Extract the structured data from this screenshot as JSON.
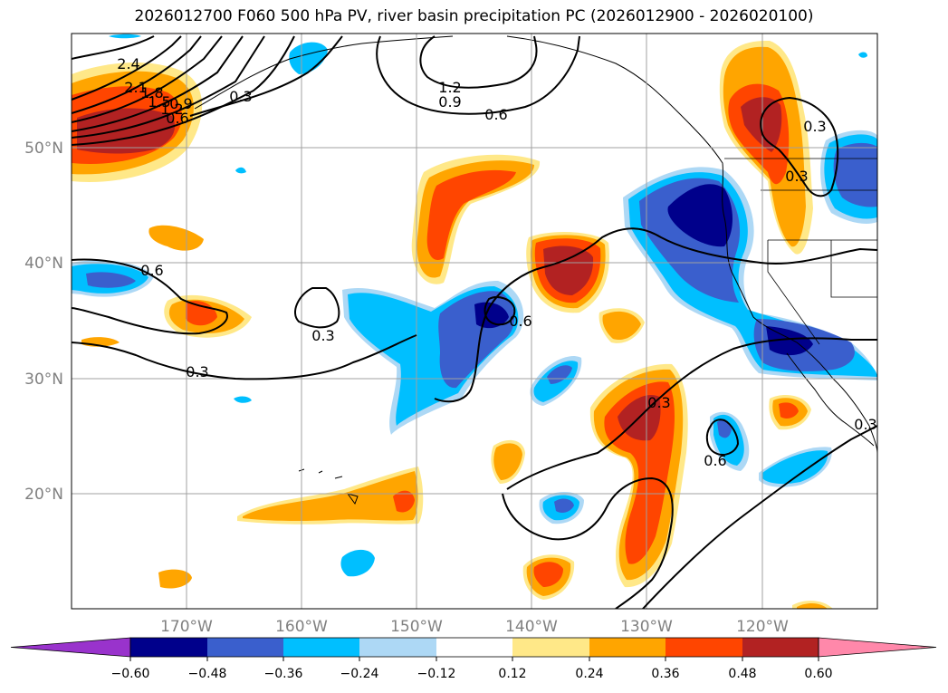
{
  "title": "2026012700 F060 500 hPa PV, river basin precipitation PC (2026012900 - 2026020100)",
  "map": {
    "lat_labels": [
      "50°N",
      "40°N",
      "30°N",
      "20°N"
    ],
    "lon_labels": [
      "170°W",
      "160°W",
      "150°W",
      "140°W",
      "130°W",
      "120°W"
    ],
    "contour_labels": [
      "2.4",
      "2.1",
      "1.8",
      "1.5",
      "1.2",
      "0.9",
      "0.6",
      "0.3",
      "1.2",
      "0.9",
      "0.6",
      "0.3",
      "0.6",
      "0.3",
      "0.3",
      "0.6",
      "0.3",
      "0.3",
      "0.6",
      "0.3"
    ]
  },
  "colorbar": {
    "ticks": [
      "−0.60",
      "−0.48",
      "−0.36",
      "−0.24",
      "−0.12",
      "0.12",
      "0.24",
      "0.36",
      "0.48",
      "0.60"
    ],
    "colors": {
      "below": "#9933cc",
      "n060": "#00008b",
      "n048": "#3a5fcd",
      "n036": "#00bfff",
      "n024": "#add8f5",
      "zero": "#ffffff",
      "p012": "#ffe888",
      "p024": "#ffa500",
      "p036": "#ff4500",
      "p048": "#b22222",
      "above": "#ff88aa"
    }
  }
}
